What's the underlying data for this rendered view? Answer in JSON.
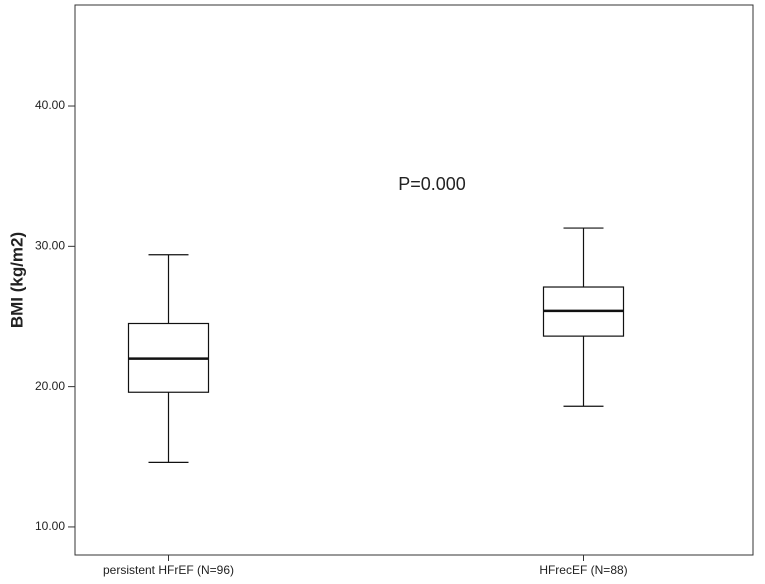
{
  "chart_data": {
    "type": "box",
    "y_label": "BMI (kg/m2)",
    "annotation": "P=0.000",
    "categories": [
      "persistent HFrEF (N=96)",
      "HFrecEF (N=88)"
    ],
    "boxes": [
      {
        "min": 14.6,
        "q1": 19.6,
        "median": 22.0,
        "q3": 24.5,
        "max": 29.4
      },
      {
        "min": 18.6,
        "q1": 23.6,
        "median": 25.4,
        "q3": 27.1,
        "max": 31.3
      }
    ],
    "color": "#ffffff",
    "ylim": [
      8,
      47.2
    ],
    "yticks": [
      {
        "value": 10,
        "label": "10.00"
      },
      {
        "value": 20,
        "label": "20.00"
      },
      {
        "value": 30,
        "label": "30.00"
      },
      {
        "value": 40,
        "label": "40.00"
      }
    ]
  }
}
